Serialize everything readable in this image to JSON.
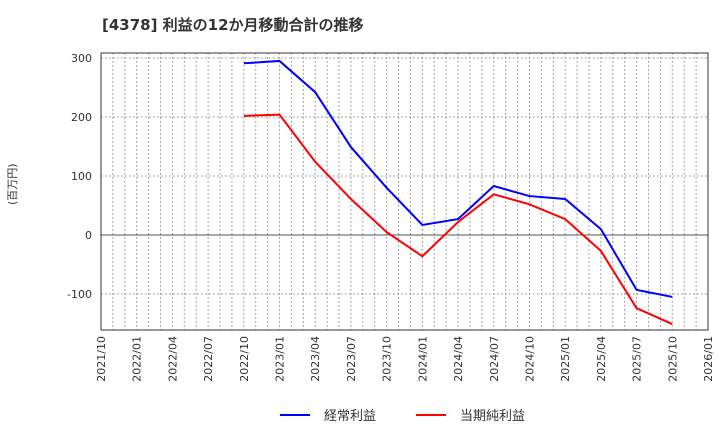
{
  "title": "[4378]  利益の12か月移動合計の推移",
  "y_axis_label": "(百万円)",
  "legend": [
    {
      "label": "経常利益",
      "color": "#0000ff"
    },
    {
      "label": "当期純利益",
      "color": "#ff0000"
    }
  ],
  "chart_data": {
    "type": "line",
    "title": "[4378]  利益の12か月移動合計の推移",
    "xlabel": "",
    "ylabel": "(百万円)",
    "ylim": [
      -160,
      310
    ],
    "yticks": [
      -100,
      0,
      100,
      200,
      300
    ],
    "xticks": [
      "2021/10",
      "2022/01",
      "2022/04",
      "2022/07",
      "2022/10",
      "2023/01",
      "2023/04",
      "2023/07",
      "2023/10",
      "2024/01",
      "2024/04",
      "2024/07",
      "2024/10",
      "2025/01",
      "2025/04",
      "2025/07",
      "2025/10",
      "2026/01"
    ],
    "grid": true,
    "legend_position": "bottom",
    "x": [
      "2022/10",
      "2023/01",
      "2023/04",
      "2023/07",
      "2023/10",
      "2024/01",
      "2024/04",
      "2024/07",
      "2024/10",
      "2025/01",
      "2025/04",
      "2025/07",
      "2025/10"
    ],
    "series": [
      {
        "name": "経常利益",
        "color": "#0000ff",
        "values": [
          291,
          295,
          242,
          149,
          80,
          17,
          27,
          83,
          66,
          61,
          10,
          -93,
          -105
        ]
      },
      {
        "name": "当期純利益",
        "color": "#ff0000",
        "values": [
          202,
          204,
          124,
          61,
          5,
          -36,
          22,
          69,
          52,
          27,
          -27,
          -124,
          -151
        ]
      }
    ]
  }
}
